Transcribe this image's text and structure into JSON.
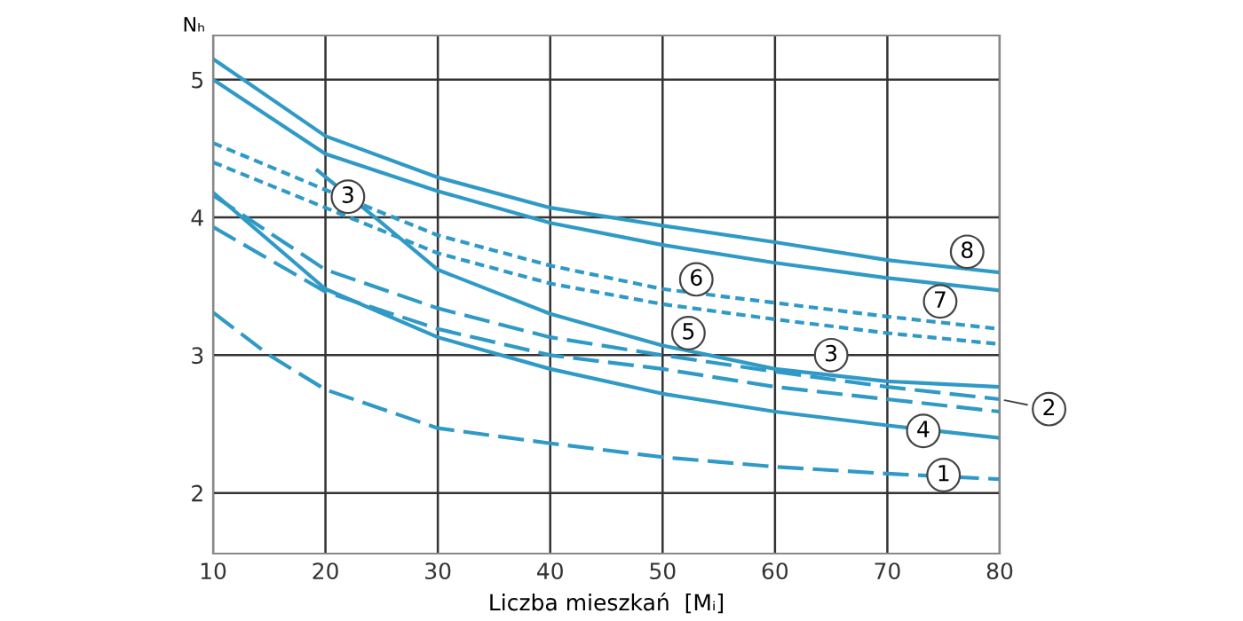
{
  "chart_data": {
    "type": "line",
    "xlabel": "Liczba mieszkań  [Mᵢ]",
    "ylabel": "Nₕ",
    "xlim": [
      10,
      80
    ],
    "ylim": [
      1.56,
      5.32
    ],
    "xticks": [
      10,
      20,
      30,
      40,
      50,
      60,
      70,
      80
    ],
    "yticks": [
      2,
      3,
      4,
      5
    ],
    "grid": true,
    "marker": "none",
    "series": [
      {
        "color": "#2f9ac6",
        "line_style": "solid",
        "x": [
          10,
          20,
          30,
          40,
          50,
          60,
          70,
          80
        ],
        "values": [
          5.15,
          4.59,
          4.29,
          4.07,
          3.94,
          3.82,
          3.69,
          3.6
        ]
      },
      {
        "color": "#2f9ac6",
        "line_style": "solid",
        "x": [
          10,
          20,
          30,
          40,
          50,
          60,
          70,
          80
        ],
        "values": [
          5.0,
          4.46,
          4.19,
          3.96,
          3.8,
          3.67,
          3.56,
          3.47
        ]
      },
      {
        "color": "#2f9ac6",
        "line_style": "dotted",
        "x": [
          10,
          20,
          30,
          40,
          50,
          60,
          70,
          80
        ],
        "values": [
          4.54,
          4.2,
          3.87,
          3.65,
          3.48,
          3.38,
          3.28,
          3.19
        ]
      },
      {
        "color": "#2f9ac6",
        "line_style": "dotted",
        "x": [
          10,
          20,
          30,
          40,
          50,
          60,
          70,
          80
        ],
        "values": [
          4.4,
          4.07,
          3.74,
          3.52,
          3.37,
          3.26,
          3.16,
          3.08
        ]
      },
      {
        "color": "#2f9ac6",
        "line_style": "solid",
        "x": [
          19.3,
          25,
          30,
          40,
          50,
          60,
          70,
          80
        ],
        "values": [
          4.34,
          3.96,
          3.62,
          3.3,
          3.07,
          2.9,
          2.81,
          2.77
        ]
      },
      {
        "color": "#2f9ac6",
        "line_style": "dashed",
        "x": [
          10,
          20,
          30,
          40,
          50,
          60,
          70,
          80
        ],
        "values": [
          4.16,
          3.62,
          3.34,
          3.13,
          3.0,
          2.88,
          2.77,
          2.68
        ]
      },
      {
        "color": "#2f9ac6",
        "line_style": "dashed",
        "x": [
          10,
          20,
          30,
          40,
          50,
          60,
          70,
          80
        ],
        "values": [
          3.93,
          3.46,
          3.19,
          3.0,
          2.9,
          2.77,
          2.68,
          2.59
        ]
      },
      {
        "color": "#2f9ac6",
        "line_style": "solid",
        "x": [
          10,
          20,
          30,
          40,
          50,
          60,
          70,
          80
        ],
        "values": [
          4.18,
          3.48,
          3.13,
          2.9,
          2.72,
          2.59,
          2.49,
          2.4
        ]
      },
      {
        "color": "#2f9ac6",
        "line_style": "dashed",
        "x": [
          10,
          15,
          20,
          30,
          40,
          50,
          60,
          70,
          80
        ],
        "values": [
          3.31,
          3.0,
          2.75,
          2.47,
          2.36,
          2.26,
          2.19,
          2.14,
          2.1
        ]
      }
    ],
    "annotations": [
      {
        "text": "8",
        "x": 77.1,
        "y": 3.75
      },
      {
        "text": "7",
        "x": 74.7,
        "y": 3.39
      },
      {
        "text": "6",
        "x": 53,
        "y": 3.55
      },
      {
        "text": "5",
        "x": 52.3,
        "y": 3.16
      },
      {
        "text": "3",
        "x": 22,
        "y": 4.15
      },
      {
        "text": "3",
        "x": 65,
        "y": 3.0
      },
      {
        "text": "2",
        "x": 80,
        "y": 2.68
      },
      {
        "text": "4",
        "x": 73.2,
        "y": 2.45
      },
      {
        "text": "1",
        "x": 75,
        "y": 2.13
      }
    ]
  }
}
